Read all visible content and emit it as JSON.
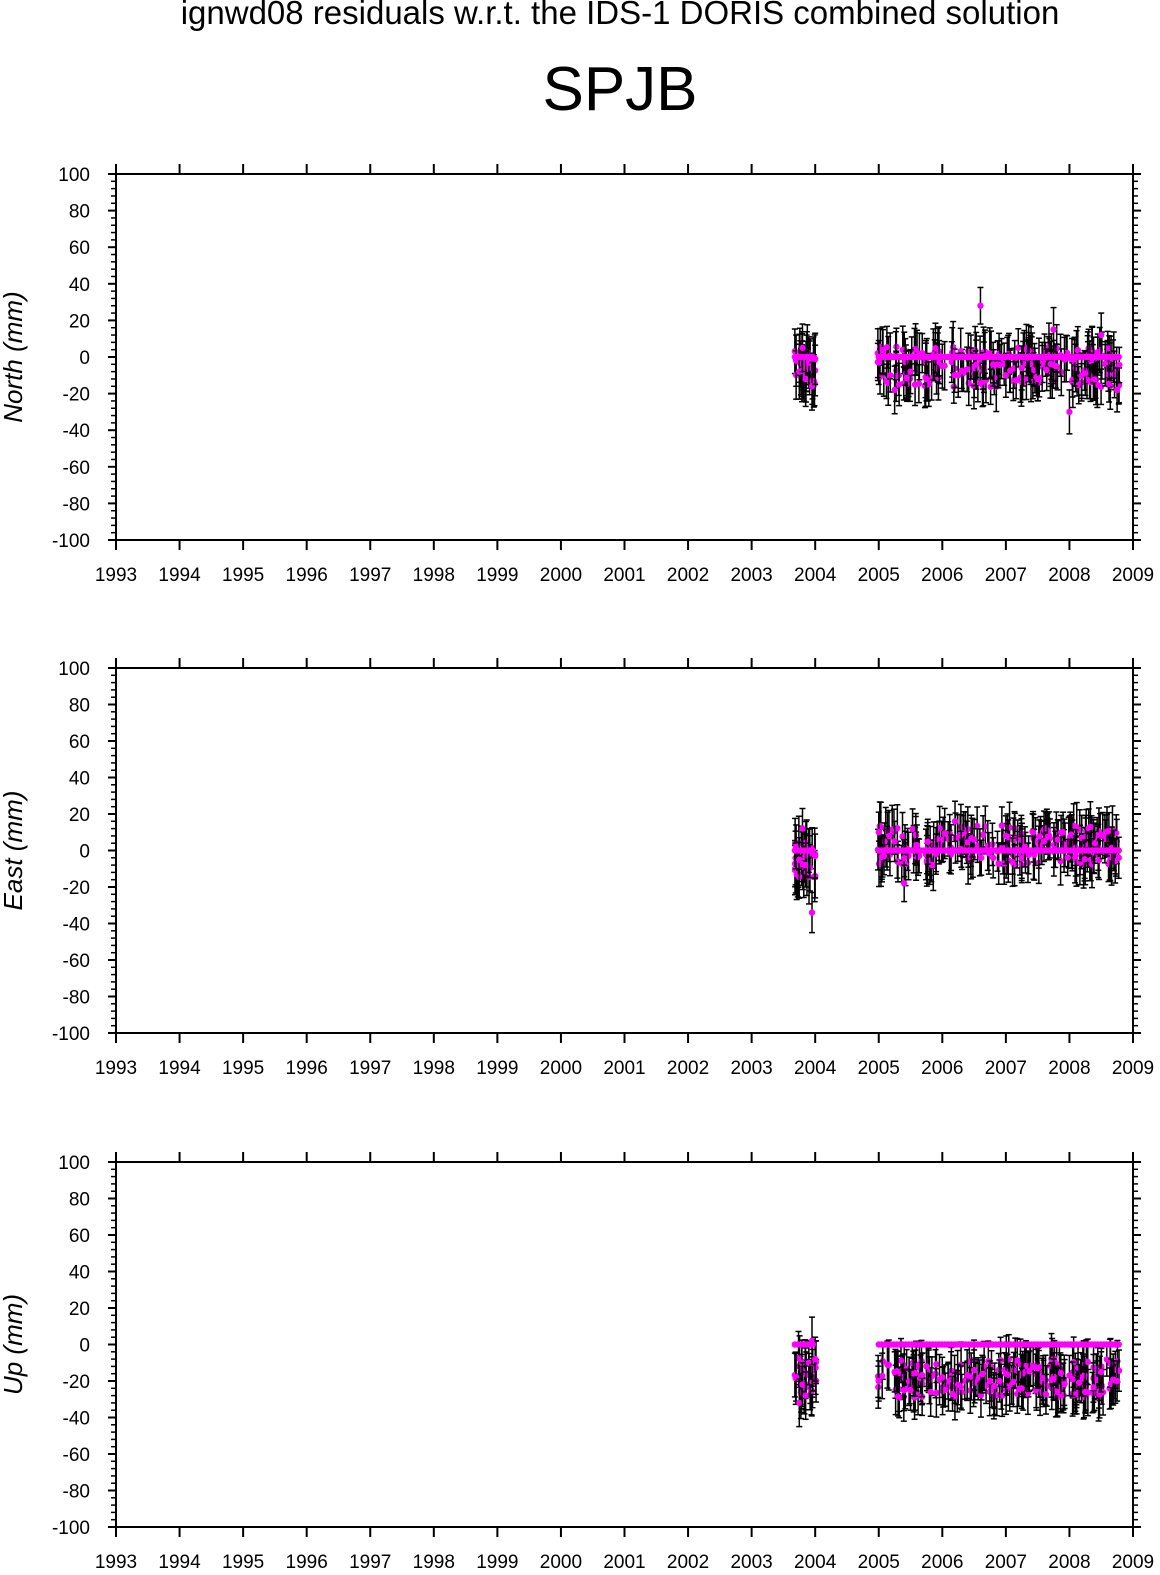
{
  "header": {
    "title": "ignwd08 residuals w.r.t. the IDS-1 DORIS combined solution",
    "station": "SPJB"
  },
  "colors": {
    "marker": "#ff00ff",
    "errorbar": "#000000",
    "axis": "#000000"
  },
  "chart_data": [
    {
      "type": "scatter",
      "ylabel": "North (mm)",
      "xlim": [
        1993,
        2009
      ],
      "ylim": [
        -100,
        100
      ],
      "xticks": [
        "1993",
        "1994",
        "1995",
        "1996",
        "1997",
        "1998",
        "1999",
        "2000",
        "2001",
        "2002",
        "2003",
        "2004",
        "2005",
        "2006",
        "2007",
        "2008",
        "2009"
      ],
      "yticks": [
        "100",
        "80",
        "60",
        "40",
        "20",
        "0",
        "-20",
        "-40",
        "-60",
        "-80",
        "-100"
      ],
      "grid": false,
      "series": [
        {
          "x": [
            2003.7,
            2003.75,
            2003.8,
            2003.85,
            2003.9,
            2003.95,
            2004.0
          ],
          "y": [
            -2,
            -8,
            5,
            -12,
            -3,
            -16,
            -1
          ],
          "err": [
            14,
            15,
            13,
            15,
            14,
            13,
            14
          ]
        },
        {
          "x": [
            2005.0,
            2005.25,
            2005.5,
            2005.75,
            2006.0,
            2006.25,
            2006.45,
            2006.6,
            2006.8,
            2007.0,
            2007.25,
            2007.5,
            2007.75,
            2008.0,
            2008.25,
            2008.5,
            2008.75
          ],
          "y": [
            -3,
            -18,
            -8,
            -12,
            -5,
            -10,
            0,
            28,
            -4,
            -10,
            -6,
            -12,
            15,
            -30,
            -9,
            12,
            -18
          ],
          "err": [
            12,
            13,
            12,
            12,
            12,
            12,
            12,
            10,
            12,
            12,
            12,
            12,
            12,
            12,
            12,
            12,
            12
          ]
        },
        {
          "x_range": [
            2005.0,
            2008.8
          ],
          "y": 0,
          "note_marker_line": true
        }
      ]
    },
    {
      "type": "scatter",
      "ylabel": "East (mm)",
      "xlim": [
        1993,
        2009
      ],
      "ylim": [
        -100,
        100
      ],
      "xticks": [
        "1993",
        "1994",
        "1995",
        "1996",
        "1997",
        "1998",
        "1999",
        "2000",
        "2001",
        "2002",
        "2003",
        "2004",
        "2005",
        "2006",
        "2007",
        "2008",
        "2009"
      ],
      "yticks": [
        "100",
        "80",
        "60",
        "40",
        "20",
        "0",
        "-20",
        "-40",
        "-60",
        "-80",
        "-100"
      ],
      "grid": false,
      "series": [
        {
          "x": [
            2003.7,
            2003.75,
            2003.8,
            2003.85,
            2003.9,
            2003.95,
            2004.0
          ],
          "y": [
            2,
            -5,
            12,
            -8,
            0,
            -34,
            -3
          ],
          "err": [
            12,
            12,
            11,
            12,
            12,
            11,
            12
          ]
        },
        {
          "x": [
            2005.0,
            2005.25,
            2005.4,
            2005.6,
            2005.9,
            2006.2,
            2006.5,
            2006.8,
            2007.0,
            2007.3,
            2007.6,
            2007.9,
            2008.1,
            2008.4,
            2008.7
          ],
          "y": [
            10,
            5,
            -18,
            3,
            -2,
            16,
            6,
            -4,
            8,
            2,
            5,
            10,
            -3,
            4,
            0
          ],
          "err": [
            11,
            11,
            10,
            11,
            11,
            11,
            11,
            11,
            11,
            11,
            11,
            11,
            11,
            11,
            11
          ]
        },
        {
          "x_range": [
            2005.0,
            2008.8
          ],
          "y": 0
        }
      ]
    },
    {
      "type": "scatter",
      "ylabel": "Up (mm)",
      "xlim": [
        1993,
        2009
      ],
      "ylim": [
        -100,
        100
      ],
      "xticks": [
        "1993",
        "1994",
        "1995",
        "1996",
        "1997",
        "1998",
        "1999",
        "2000",
        "2001",
        "2002",
        "2003",
        "2004",
        "2005",
        "2006",
        "2007",
        "2008",
        "2009"
      ],
      "yticks": [
        "100",
        "80",
        "60",
        "40",
        "20",
        "0",
        "-20",
        "-40",
        "-60",
        "-80",
        "-100"
      ],
      "grid": false,
      "series": [
        {
          "x": [
            2003.7,
            2003.75,
            2003.8,
            2003.85,
            2003.9,
            2003.95,
            2004.0
          ],
          "y": [
            -18,
            -32,
            -22,
            -28,
            -10,
            2,
            -8
          ],
          "err": [
            13,
            13,
            12,
            13,
            12,
            13,
            12
          ]
        },
        {
          "x": [
            2005.0,
            2005.25,
            2005.5,
            2005.75,
            2006.0,
            2006.25,
            2006.5,
            2006.75,
            2007.0,
            2007.25,
            2007.5,
            2007.75,
            2008.0,
            2008.25,
            2008.5,
            2008.75
          ],
          "y": [
            -20,
            -15,
            -25,
            -12,
            -18,
            -22,
            -14,
            -20,
            -16,
            -24,
            -13,
            -19,
            -17,
            -26,
            -15,
            -20
          ],
          "err": [
            11,
            11,
            11,
            11,
            11,
            11,
            11,
            11,
            11,
            11,
            11,
            11,
            11,
            11,
            11,
            11
          ]
        },
        {
          "x_range": [
            2005.0,
            2008.8
          ],
          "y": 0
        }
      ]
    }
  ]
}
